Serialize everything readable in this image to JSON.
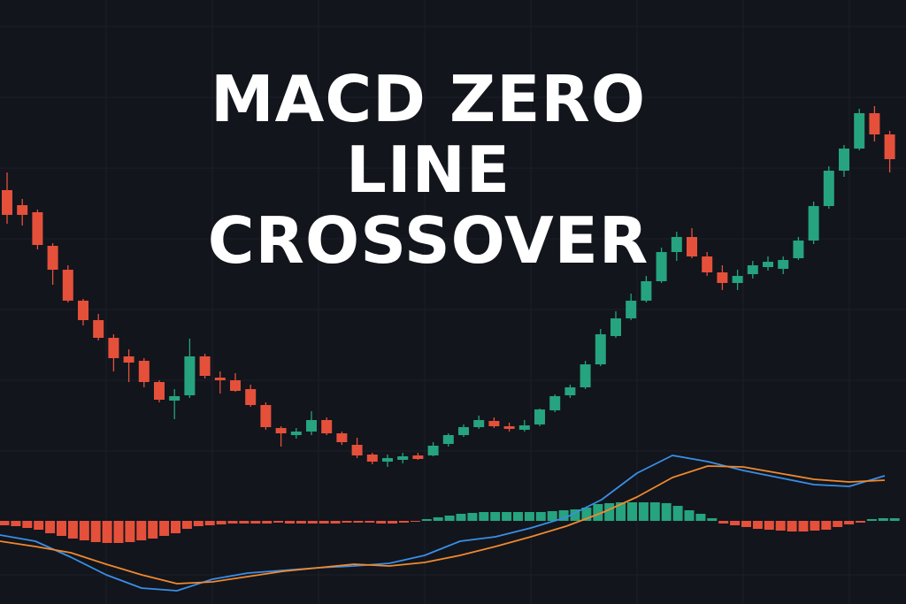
{
  "chart_data": [
    {
      "type": "candlestick",
      "title": "MACD ZERO LINE CROSSOVER",
      "up_color": "#26a37f",
      "down_color": "#e5503b",
      "ylim": [
        0,
        683
      ],
      "open": [
        468,
        451,
        443,
        405,
        378,
        343,
        321,
        301,
        280,
        275,
        251,
        230,
        236,
        280,
        256,
        253,
        243,
        225,
        199,
        191,
        195,
        208,
        193,
        180,
        169,
        161,
        163,
        168,
        168,
        181,
        191,
        200,
        207,
        201,
        197,
        203,
        219,
        236,
        245,
        271,
        303,
        323,
        343,
        365,
        398,
        415,
        393,
        375,
        363,
        373,
        381,
        379,
        391,
        411,
        450,
        490,
        515,
        555,
        531
      ],
      "high": [
        488,
        458,
        446,
        408,
        383,
        345,
        328,
        305,
        288,
        278,
        253,
        243,
        300,
        283,
        263,
        261,
        248,
        228,
        201,
        199,
        218,
        211,
        195,
        188,
        171,
        169,
        171,
        171,
        183,
        193,
        203,
        213,
        211,
        205,
        208,
        221,
        237,
        248,
        275,
        311,
        331,
        351,
        371,
        403,
        421,
        425,
        398,
        383,
        378,
        388,
        393,
        393,
        415,
        455,
        495,
        519,
        560,
        563,
        535
      ],
      "low": [
        430,
        428,
        401,
        361,
        341,
        315,
        298,
        263,
        251,
        245,
        228,
        209,
        233,
        255,
        238,
        240,
        223,
        197,
        178,
        187,
        191,
        191,
        180,
        165,
        158,
        155,
        159,
        163,
        167,
        178,
        189,
        198,
        199,
        195,
        195,
        201,
        217,
        233,
        243,
        269,
        301,
        321,
        341,
        363,
        388,
        391,
        371,
        355,
        355,
        368,
        377,
        373,
        389,
        407,
        447,
        483,
        513,
        523,
        488
      ],
      "close": [
        440,
        440,
        406,
        378,
        343,
        321,
        301,
        278,
        273,
        251,
        231,
        235,
        280,
        258,
        253,
        241,
        225,
        200,
        193,
        195,
        208,
        193,
        183,
        168,
        161,
        165,
        167,
        164,
        179,
        191,
        200,
        208,
        201,
        198,
        202,
        220,
        235,
        245,
        271,
        305,
        323,
        343,
        365,
        398,
        415,
        393,
        375,
        363,
        371,
        383,
        387,
        389,
        411,
        450,
        490,
        515,
        555,
        531,
        503
      ]
    },
    {
      "type": "macd",
      "ylim": [
        -94,
        94
      ],
      "histogram": {
        "up_color": "#26a37f",
        "down_color": "#e5503b",
        "values": [
          -5,
          -6,
          -8,
          -10,
          -14,
          -17,
          -20,
          -22,
          -24,
          -25,
          -25,
          -24,
          -22,
          -20,
          -17,
          -14,
          -9,
          -6,
          -5,
          -4,
          -3,
          -3,
          -3,
          -3,
          -2,
          -3,
          -3,
          -3,
          -3,
          -3,
          -2,
          -2,
          -2,
          -3,
          -3,
          -2,
          -1,
          2,
          4,
          6,
          8,
          9,
          10,
          10,
          10,
          10,
          10,
          10,
          11,
          12,
          13,
          15,
          19,
          20,
          21,
          21,
          21,
          21,
          20,
          17,
          12,
          8,
          3,
          -3,
          -5,
          -7,
          -9,
          -10,
          -11,
          -12,
          -12,
          -11,
          -10,
          -7,
          -4,
          -2,
          2,
          3,
          3
        ]
      },
      "series": [
        {
          "color": "#3a8ee6",
          "values": [
            -16,
            -23,
            -41,
            -61,
            -76,
            -79,
            -66,
            -59,
            -56,
            -53,
            -51,
            -48,
            -39,
            -23,
            -18,
            -8,
            4,
            24,
            54,
            74,
            67,
            57,
            49,
            41,
            39,
            51
          ]
        },
        {
          "color": "#f0892e",
          "values": [
            -23,
            -29,
            -36,
            -49,
            -61,
            -71,
            -69,
            -63,
            -57,
            -53,
            -49,
            -51,
            -47,
            -39,
            -29,
            -18,
            -6,
            9,
            27,
            49,
            62,
            61,
            54,
            47,
            44,
            46
          ]
        }
      ]
    }
  ]
}
